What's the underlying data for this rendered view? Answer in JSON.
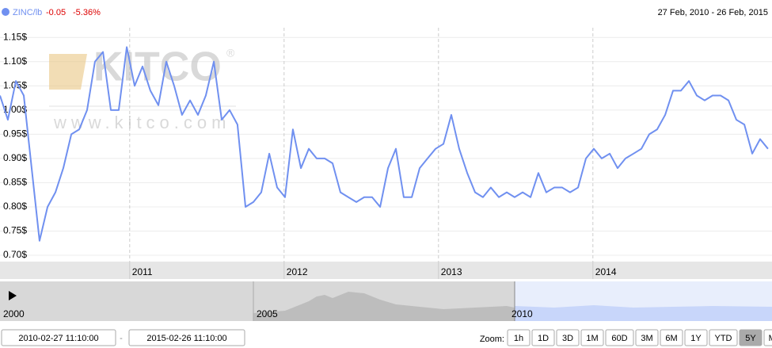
{
  "chart_data": {
    "type": "line",
    "range_label": "27 Feb, 2010 - 26 Feb, 2015",
    "change": -0.05,
    "change_percent": "-5.36%",
    "watermark": {
      "brand": "KITCO",
      "mark": "®",
      "url": "www.kitco.com"
    },
    "x": [
      2010.16,
      2010.211,
      2010.263,
      2010.314,
      2010.365,
      2010.416,
      2010.468,
      2010.519,
      2010.57,
      2010.622,
      2010.673,
      2010.724,
      2010.775,
      2010.827,
      2010.878,
      2010.929,
      2010.981,
      2011.032,
      2011.083,
      2011.134,
      2011.186,
      2011.237,
      2011.288,
      2011.339,
      2011.391,
      2011.442,
      2011.493,
      2011.545,
      2011.596,
      2011.647,
      2011.698,
      2011.75,
      2011.801,
      2011.852,
      2011.904,
      2011.955,
      2012.006,
      2012.057,
      2012.109,
      2012.16,
      2012.211,
      2012.263,
      2012.314,
      2012.365,
      2012.416,
      2012.468,
      2012.519,
      2012.57,
      2012.622,
      2012.673,
      2012.724,
      2012.775,
      2012.827,
      2012.878,
      2012.929,
      2012.981,
      2013.032,
      2013.083,
      2013.134,
      2013.186,
      2013.237,
      2013.288,
      2013.339,
      2013.391,
      2013.442,
      2013.493,
      2013.545,
      2013.596,
      2013.647,
      2013.698,
      2013.75,
      2013.801,
      2013.852,
      2013.904,
      2013.955,
      2014.006,
      2014.057,
      2014.109,
      2014.16,
      2014.211,
      2014.263,
      2014.314,
      2014.365,
      2014.416,
      2014.468,
      2014.519,
      2014.57,
      2014.622,
      2014.673,
      2014.724,
      2014.775,
      2014.827,
      2014.878,
      2014.929,
      2014.981,
      2015.032,
      2015.083,
      2015.134
    ],
    "series": [
      {
        "name": "ZINC/lb",
        "color": "#7090f0",
        "values": [
          1.03,
          0.98,
          1.06,
          1.03,
          0.88,
          0.73,
          0.8,
          0.83,
          0.88,
          0.95,
          0.96,
          1.0,
          1.1,
          1.12,
          1.0,
          1.0,
          1.13,
          1.05,
          1.09,
          1.04,
          1.01,
          1.1,
          1.05,
          0.99,
          1.02,
          0.99,
          1.03,
          1.1,
          0.98,
          1.0,
          0.97,
          0.8,
          0.81,
          0.83,
          0.91,
          0.84,
          0.82,
          0.96,
          0.88,
          0.92,
          0.9,
          0.9,
          0.89,
          0.83,
          0.82,
          0.81,
          0.82,
          0.82,
          0.8,
          0.88,
          0.92,
          0.82,
          0.82,
          0.88,
          0.9,
          0.92,
          0.93,
          0.99,
          0.92,
          0.87,
          0.83,
          0.82,
          0.84,
          0.82,
          0.83,
          0.82,
          0.83,
          0.82,
          0.87,
          0.83,
          0.84,
          0.84,
          0.83,
          0.84,
          0.9,
          0.92,
          0.9,
          0.91,
          0.88,
          0.9,
          0.91,
          0.92,
          0.95,
          0.96,
          0.99,
          1.04,
          1.04,
          1.06,
          1.03,
          1.02,
          1.03,
          1.03,
          1.02,
          0.98,
          0.97,
          0.91,
          0.94,
          0.92
        ]
      }
    ],
    "xlim": [
      2010.16,
      2015.16
    ],
    "xticks": [
      2011,
      2012,
      2013,
      2014
    ],
    "ylim": [
      0.687,
      1.17
    ],
    "yticks": [
      {
        "value": 0.7,
        "label": "0.70$"
      },
      {
        "value": 0.75,
        "label": "0.75$"
      },
      {
        "value": 0.8,
        "label": "0.80$"
      },
      {
        "value": 0.85,
        "label": "0.85$"
      },
      {
        "value": 0.9,
        "label": "0.90$"
      },
      {
        "value": 0.95,
        "label": "0.95$"
      },
      {
        "value": 1.0,
        "label": "1.00$"
      },
      {
        "value": 1.05,
        "label": "1.05$"
      },
      {
        "value": 1.1,
        "label": "1.10$"
      },
      {
        "value": 1.15,
        "label": "1.15$"
      }
    ],
    "grid": true,
    "navigator": {
      "labels": [
        "2000",
        "2005",
        "2010"
      ]
    },
    "controls": {
      "from": "2010-02-27 11:10:00",
      "separator": "-",
      "to": "2015-02-26 11:10:00",
      "zoom_label": "Zoom:",
      "buttons": [
        "1h",
        "1D",
        "3D",
        "1M",
        "60D",
        "3M",
        "6M",
        "1Y",
        "YTD",
        "5Y",
        "MAX"
      ],
      "selected": "5Y"
    }
  }
}
